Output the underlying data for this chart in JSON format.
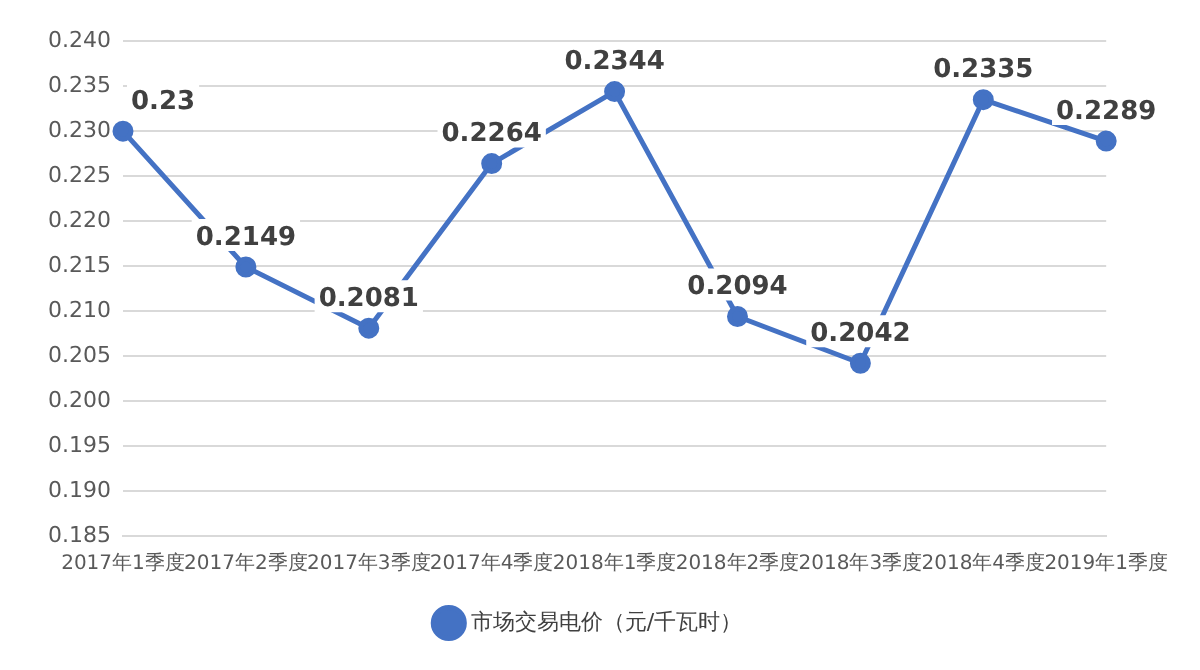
{
  "chart_data": {
    "type": "line",
    "categories": [
      "2017年1季度",
      "2017年2季度",
      "2017年3季度",
      "2017年4季度",
      "2018年1季度",
      "2018年2季度",
      "2018年3季度",
      "2018年4季度",
      "2019年1季度"
    ],
    "series": [
      {
        "name": "市场交易电价（元/千瓦时）",
        "color": "#4472c4",
        "values": [
          0.23,
          0.2149,
          0.2081,
          0.2264,
          0.2344,
          0.2094,
          0.2042,
          0.2335,
          0.2289
        ]
      }
    ],
    "ylim": [
      0.185,
      0.24
    ],
    "yticks": [
      {
        "value": 0.185,
        "label": "0.185"
      },
      {
        "value": 0.19,
        "label": "0.190"
      },
      {
        "value": 0.195,
        "label": "0.195"
      },
      {
        "value": 0.2,
        "label": "0.200"
      },
      {
        "value": 0.205,
        "label": "0.205"
      },
      {
        "value": 0.21,
        "label": "0.210"
      },
      {
        "value": 0.215,
        "label": "0.215"
      },
      {
        "value": 0.22,
        "label": "0.220"
      },
      {
        "value": 0.225,
        "label": "0.225"
      },
      {
        "value": 0.23,
        "label": "0.230"
      },
      {
        "value": 0.235,
        "label": "0.235"
      },
      {
        "value": 0.24,
        "label": "0.240"
      }
    ],
    "grid": "y",
    "legend": "bottom",
    "marker": "circle",
    "line_style": "solid",
    "data_labels": true
  }
}
